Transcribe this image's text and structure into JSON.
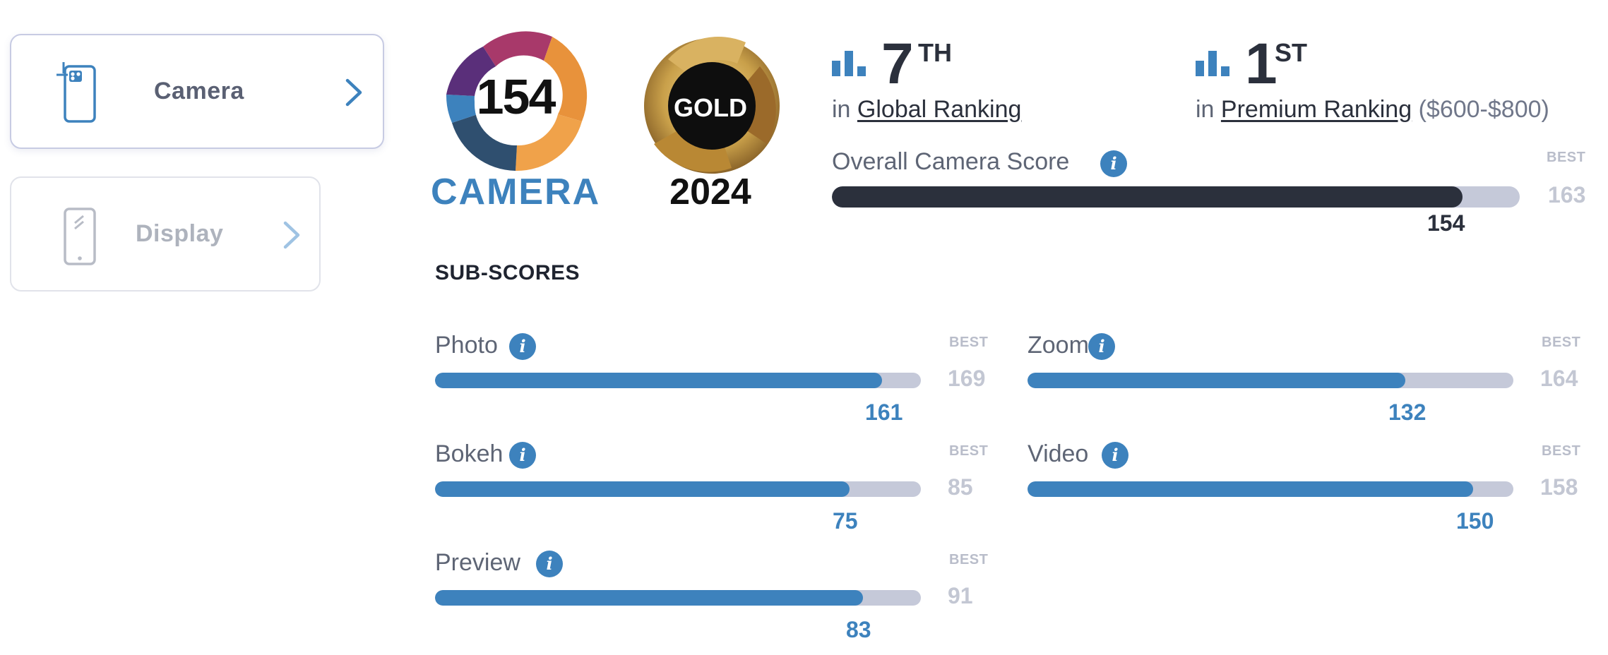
{
  "tabs": [
    {
      "label": "Camera",
      "icon": "camera-phone-icon",
      "active": true
    },
    {
      "label": "Display",
      "icon": "display-phone-icon",
      "active": false
    }
  ],
  "badges": {
    "camera_score": "154",
    "camera_caption": "CAMERA",
    "gold_label": "GOLD",
    "gold_year": "2024"
  },
  "ranking": {
    "global": {
      "number": "7",
      "suffix": "TH",
      "prefix": "in",
      "link": "Global Ranking"
    },
    "premium": {
      "number": "1",
      "suffix": "ST",
      "prefix": "in",
      "link": "Premium Ranking",
      "range": "($600-$800)"
    }
  },
  "overall": {
    "label": "Overall Camera Score",
    "best_label": "BEST",
    "best": 163,
    "score": 154
  },
  "subscores": {
    "title": "SUB-SCORES",
    "best_label": "BEST",
    "items": [
      {
        "name": "Photo",
        "score": 161,
        "best": 169
      },
      {
        "name": "Zoom",
        "score": 132,
        "best": 164
      },
      {
        "name": "Bokeh",
        "score": 75,
        "best": 85
      },
      {
        "name": "Video",
        "score": 150,
        "best": 158
      },
      {
        "name": "Preview",
        "score": 83,
        "best": 91
      }
    ]
  },
  "colors": {
    "accent_blue": "#3d82bd",
    "dark_bar": "#2b303c",
    "track": "#c5c9d9",
    "gold": "#c9a04a"
  }
}
